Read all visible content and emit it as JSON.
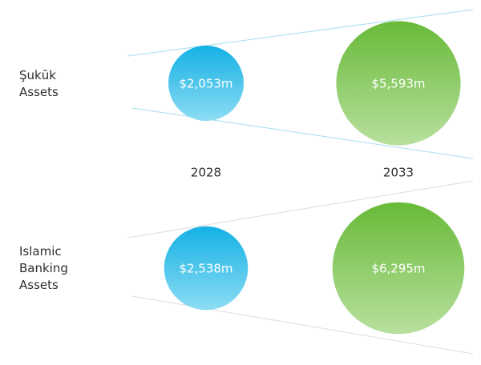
{
  "chart_data": {
    "type": "bubble",
    "categories": [
      "2028",
      "2033"
    ],
    "colors": [
      [
        "#14b1e5",
        "#8ddcf3"
      ],
      [
        "#68ba38",
        "#b8e09e"
      ]
    ],
    "series": [
      {
        "name": "Şukūk Assets",
        "values": [
          2053,
          5593
        ],
        "value_labels": [
          "$2,053m",
          "$5,593m"
        ]
      },
      {
        "name": "Islamic Banking Assets",
        "values": [
          2538,
          6295
        ],
        "value_labels": [
          "$2,538m",
          "$6,295m"
        ]
      }
    ]
  }
}
